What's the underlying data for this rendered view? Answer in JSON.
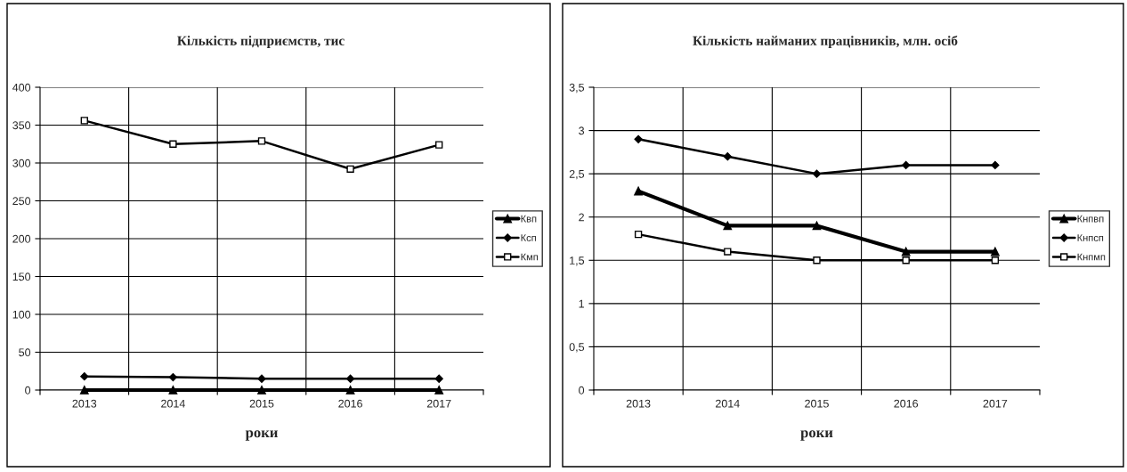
{
  "chart_data": [
    {
      "type": "line",
      "title": "Кількість підприємств, тис",
      "xlabel": "роки",
      "categories": [
        "2013",
        "2014",
        "2015",
        "2016",
        "2017"
      ],
      "series": [
        {
          "name": "Квп",
          "color": "#000000",
          "marker": "triangle",
          "values": [
            0,
            0,
            0,
            0,
            0
          ]
        },
        {
          "name": "Ксп",
          "color": "#000000",
          "marker": "diamond",
          "values": [
            18,
            17,
            15,
            15,
            15
          ]
        },
        {
          "name": "Кмп",
          "color": "#000000",
          "marker": "square",
          "values": [
            356,
            325,
            329,
            292,
            324
          ]
        }
      ],
      "ylim": [
        0,
        400
      ],
      "yticks": [
        0,
        50,
        100,
        150,
        200,
        250,
        300,
        350,
        400
      ],
      "grid": true,
      "legend": "right"
    },
    {
      "type": "line",
      "title": "Кількість найманих працівників, млн. осіб",
      "xlabel": "роки",
      "categories": [
        "2013",
        "2014",
        "2015",
        "2016",
        "2017"
      ],
      "series": [
        {
          "name": "Кнпвп",
          "color": "#000000",
          "marker": "triangle",
          "values": [
            2.3,
            1.9,
            1.9,
            1.6,
            1.6
          ]
        },
        {
          "name": "Кнпсп",
          "color": "#000000",
          "marker": "diamond",
          "values": [
            2.9,
            2.7,
            2.5,
            2.6,
            2.6
          ]
        },
        {
          "name": "Кнпмп",
          "color": "#000000",
          "marker": "square",
          "values": [
            1.8,
            1.6,
            1.5,
            1.5,
            1.5
          ]
        }
      ],
      "ylim": [
        0,
        3.5
      ],
      "yticks": [
        0,
        {
          "value": 0.5,
          "label": "0,5"
        },
        1,
        {
          "value": 1.5,
          "label": "1,5"
        },
        2,
        {
          "value": 2.5,
          "label": "2,5"
        },
        3,
        {
          "value": 3.5,
          "label": "3,5"
        }
      ],
      "grid": true,
      "legend": "right"
    }
  ]
}
